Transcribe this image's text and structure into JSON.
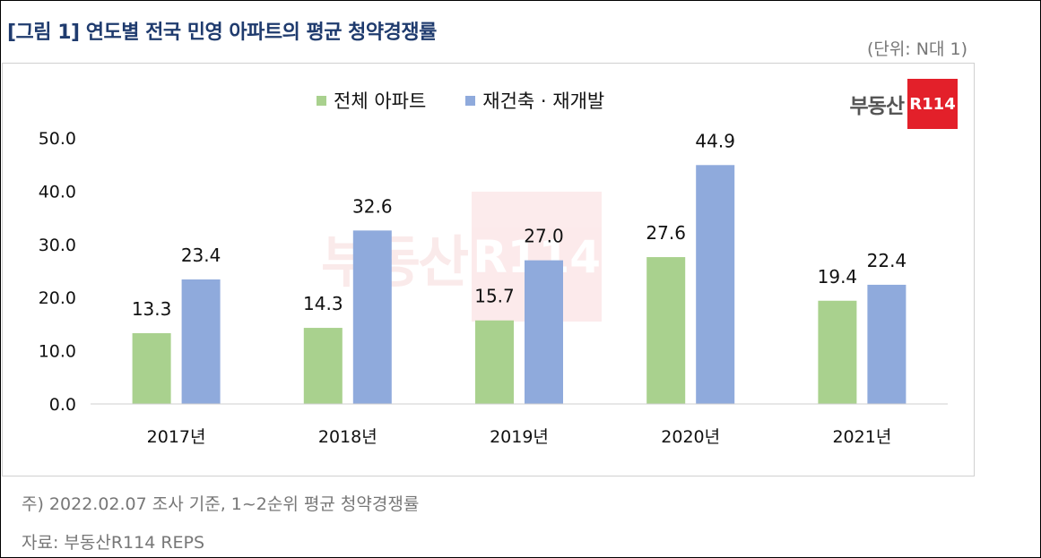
{
  "title": "[그림 1] 연도별 전국 민영 아파트의 평균 청약경쟁률",
  "unit_label": "(단위: N대 1)",
  "brand": {
    "name": "부동산",
    "mark": "R114"
  },
  "notes": {
    "line1": "주) 2022.02.07 조사 기준,  1~2순위 평균 청약경쟁률",
    "line2": "자료: 부동산R114 REPS"
  },
  "colors": {
    "title": "#1f3b6e",
    "series1": "#a9d18e",
    "series2": "#8faadc",
    "brand_red": "#e3202a"
  },
  "chart_data": {
    "type": "bar",
    "title": "[그림 1] 연도별 전국 민영 아파트의 평균 청약경쟁률",
    "categories": [
      "2017년",
      "2018년",
      "2019년",
      "2020년",
      "2021년"
    ],
    "series": [
      {
        "name": "전체 아파트",
        "color": "#a9d18e",
        "values": [
          13.3,
          14.3,
          15.7,
          27.6,
          19.4
        ],
        "labels": [
          "13.3",
          "14.3",
          "15.7",
          "27.6",
          "19.4"
        ]
      },
      {
        "name": "재건축 · 재개발",
        "color": "#8faadc",
        "values": [
          23.4,
          32.6,
          27.0,
          44.9,
          22.4
        ],
        "labels": [
          "23.4",
          "32.6",
          "27.0",
          "44.9",
          "22.4"
        ]
      }
    ],
    "ylim": [
      0,
      50
    ],
    "yticks": [
      0,
      10,
      20,
      30,
      40,
      50
    ],
    "ytick_labels": [
      "0.0",
      "10.0",
      "20.0",
      "30.0",
      "40.0",
      "50.0"
    ],
    "grid": false,
    "legend_position": "top-center",
    "xlabel": "",
    "ylabel": ""
  }
}
